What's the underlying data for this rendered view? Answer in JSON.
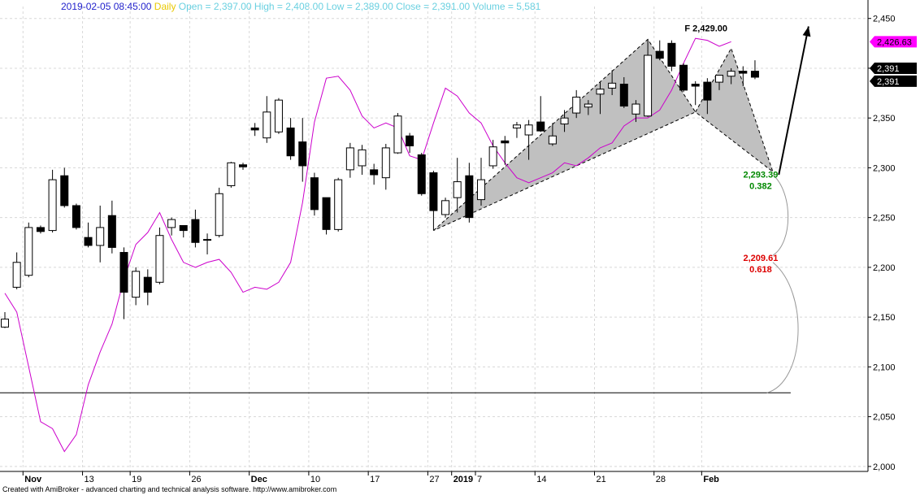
{
  "header": {
    "datetime": "2019-02-05 08:45:00",
    "period": "Daily",
    "open_label": "Open =",
    "open": "2,397.00",
    "high_label": "High =",
    "high": "2,408.00",
    "low_label": "Low =",
    "low": "2,389.00",
    "close_label": "Close =",
    "close": "2,391.00",
    "volume_label": "Volume =",
    "volume": "5,581"
  },
  "footer": "Created with AmiBroker - advanced charting and technical analysis software. http://www.amibroker.com",
  "colors": {
    "header_date": "#2222cc",
    "header_period": "#e8c800",
    "header_fields": "#6ad0e0",
    "overlay_line": "#cc00cc",
    "pattern_fill": "#c0c0c0",
    "fib_1": "#008800",
    "fib_2": "#dd0000",
    "grid": "#d8d8d8"
  },
  "chart_data": {
    "type": "candlestick",
    "ylim": [
      1995,
      2462
    ],
    "y_ticks": [
      "2,450",
      "2,400",
      "2,350",
      "2,300",
      "2,250",
      "2,200",
      "2,150",
      "2,100",
      "2,050",
      "2,000"
    ],
    "y_tick_values": [
      2450,
      2400,
      2350,
      2300,
      2250,
      2200,
      2150,
      2100,
      2050,
      2000
    ],
    "grid": true,
    "x_labels": [
      {
        "label": "Nov",
        "i": 2
      },
      {
        "label": "13",
        "i": 7
      },
      {
        "label": "19",
        "i": 11
      },
      {
        "label": "26",
        "i": 16
      },
      {
        "label": "Dec",
        "i": 21
      },
      {
        "label": "10",
        "i": 26
      },
      {
        "label": "17",
        "i": 31
      },
      {
        "label": "27",
        "i": 36
      },
      {
        "label": "2019",
        "i": 38
      },
      {
        "label": "7",
        "i": 40
      },
      {
        "label": "14",
        "i": 45
      },
      {
        "label": "21",
        "i": 50
      },
      {
        "label": "28",
        "i": 55
      },
      {
        "label": "Feb",
        "i": 59
      }
    ],
    "candles": [
      {
        "o": 2140,
        "h": 2155,
        "l": 2139,
        "c": 2148
      },
      {
        "o": 2180,
        "h": 2215,
        "l": 2178,
        "c": 2205
      },
      {
        "o": 2192,
        "h": 2245,
        "l": 2190,
        "c": 2240
      },
      {
        "o": 2240,
        "h": 2242,
        "l": 2234,
        "c": 2236
      },
      {
        "o": 2237,
        "h": 2298,
        "l": 2235,
        "c": 2288
      },
      {
        "o": 2292,
        "h": 2300,
        "l": 2260,
        "c": 2262
      },
      {
        "o": 2262,
        "h": 2264,
        "l": 2238,
        "c": 2240
      },
      {
        "o": 2230,
        "h": 2245,
        "l": 2220,
        "c": 2222
      },
      {
        "o": 2222,
        "h": 2262,
        "l": 2205,
        "c": 2240
      },
      {
        "o": 2252,
        "h": 2267,
        "l": 2214,
        "c": 2220
      },
      {
        "o": 2215,
        "h": 2220,
        "l": 2148,
        "c": 2175
      },
      {
        "o": 2170,
        "h": 2200,
        "l": 2162,
        "c": 2196
      },
      {
        "o": 2190,
        "h": 2198,
        "l": 2162,
        "c": 2175
      },
      {
        "o": 2185,
        "h": 2240,
        "l": 2183,
        "c": 2232
      },
      {
        "o": 2240,
        "h": 2250,
        "l": 2232,
        "c": 2248
      },
      {
        "o": 2242,
        "h": 2242,
        "l": 2230,
        "c": 2237
      },
      {
        "o": 2248,
        "h": 2258,
        "l": 2220,
        "c": 2225
      },
      {
        "o": 2228,
        "h": 2234,
        "l": 2213,
        "c": 2228
      },
      {
        "o": 2232,
        "h": 2280,
        "l": 2230,
        "c": 2274
      },
      {
        "o": 2282,
        "h": 2306,
        "l": 2280,
        "c": 2305
      },
      {
        "o": 2303,
        "h": 2305,
        "l": 2298,
        "c": 2301
      },
      {
        "o": 2340,
        "h": 2345,
        "l": 2332,
        "c": 2338
      },
      {
        "o": 2330,
        "h": 2372,
        "l": 2325,
        "c": 2356
      },
      {
        "o": 2336,
        "h": 2370,
        "l": 2334,
        "c": 2368
      },
      {
        "o": 2340,
        "h": 2350,
        "l": 2308,
        "c": 2312
      },
      {
        "o": 2326,
        "h": 2350,
        "l": 2286,
        "c": 2302
      },
      {
        "o": 2290,
        "h": 2295,
        "l": 2252,
        "c": 2258
      },
      {
        "o": 2270,
        "h": 2270,
        "l": 2233,
        "c": 2238
      },
      {
        "o": 2238,
        "h": 2290,
        "l": 2236,
        "c": 2288
      },
      {
        "o": 2298,
        "h": 2325,
        "l": 2290,
        "c": 2320
      },
      {
        "o": 2302,
        "h": 2323,
        "l": 2293,
        "c": 2318
      },
      {
        "o": 2298,
        "h": 2304,
        "l": 2283,
        "c": 2293
      },
      {
        "o": 2290,
        "h": 2324,
        "l": 2278,
        "c": 2320
      },
      {
        "o": 2315,
        "h": 2355,
        "l": 2314,
        "c": 2352
      },
      {
        "o": 2332,
        "h": 2335,
        "l": 2315,
        "c": 2322
      },
      {
        "o": 2313,
        "h": 2315,
        "l": 2272,
        "c": 2274
      },
      {
        "o": 2295,
        "h": 2297,
        "l": 2237,
        "c": 2257
      },
      {
        "o": 2253,
        "h": 2270,
        "l": 2250,
        "c": 2267
      },
      {
        "o": 2270,
        "h": 2310,
        "l": 2255,
        "c": 2286
      },
      {
        "o": 2292,
        "h": 2305,
        "l": 2245,
        "c": 2250
      },
      {
        "o": 2268,
        "h": 2310,
        "l": 2262,
        "c": 2288
      },
      {
        "o": 2302,
        "h": 2328,
        "l": 2299,
        "c": 2321
      },
      {
        "o": 2327,
        "h": 2332,
        "l": 2303,
        "c": 2325
      },
      {
        "o": 2340,
        "h": 2346,
        "l": 2330,
        "c": 2343
      },
      {
        "o": 2333,
        "h": 2348,
        "l": 2308,
        "c": 2343
      },
      {
        "o": 2346,
        "h": 2372,
        "l": 2336,
        "c": 2337
      },
      {
        "o": 2324,
        "h": 2345,
        "l": 2322,
        "c": 2332
      },
      {
        "o": 2344,
        "h": 2358,
        "l": 2336,
        "c": 2350
      },
      {
        "o": 2355,
        "h": 2378,
        "l": 2350,
        "c": 2371
      },
      {
        "o": 2361,
        "h": 2368,
        "l": 2353,
        "c": 2364
      },
      {
        "o": 2374,
        "h": 2386,
        "l": 2354,
        "c": 2379
      },
      {
        "o": 2380,
        "h": 2398,
        "l": 2373,
        "c": 2385
      },
      {
        "o": 2384,
        "h": 2391,
        "l": 2360,
        "c": 2362
      },
      {
        "o": 2354,
        "h": 2368,
        "l": 2346,
        "c": 2364
      },
      {
        "o": 2352,
        "h": 2429,
        "l": 2351,
        "c": 2413
      },
      {
        "o": 2417,
        "h": 2428,
        "l": 2408,
        "c": 2410
      },
      {
        "o": 2425,
        "h": 2428,
        "l": 2397,
        "c": 2402
      },
      {
        "o": 2403,
        "h": 2405,
        "l": 2376,
        "c": 2378
      },
      {
        "o": 2384,
        "h": 2387,
        "l": 2363,
        "c": 2382
      },
      {
        "o": 2386,
        "h": 2390,
        "l": 2354,
        "c": 2368
      },
      {
        "o": 2386,
        "h": 2393,
        "l": 2378,
        "c": 2393
      },
      {
        "o": 2392,
        "h": 2400,
        "l": 2384,
        "c": 2397
      },
      {
        "o": 2397,
        "h": 2402,
        "l": 2382,
        "c": 2395
      },
      {
        "o": 2397,
        "h": 2408,
        "l": 2389,
        "c": 2391
      }
    ],
    "overlay_series": [
      {
        "i": 0,
        "v": 2174
      },
      {
        "i": 1,
        "v": 2155
      },
      {
        "i": 2,
        "v": 2100
      },
      {
        "i": 3,
        "v": 2045
      },
      {
        "i": 4,
        "v": 2038
      },
      {
        "i": 5,
        "v": 2015
      },
      {
        "i": 6,
        "v": 2032
      },
      {
        "i": 7,
        "v": 2082
      },
      {
        "i": 8,
        "v": 2115
      },
      {
        "i": 9,
        "v": 2143
      },
      {
        "i": 10,
        "v": 2188
      },
      {
        "i": 11,
        "v": 2223
      },
      {
        "i": 12,
        "v": 2235
      },
      {
        "i": 13,
        "v": 2255
      },
      {
        "i": 14,
        "v": 2228
      },
      {
        "i": 15,
        "v": 2205
      },
      {
        "i": 16,
        "v": 2200
      },
      {
        "i": 17,
        "v": 2205
      },
      {
        "i": 18,
        "v": 2208
      },
      {
        "i": 19,
        "v": 2195
      },
      {
        "i": 20,
        "v": 2175
      },
      {
        "i": 21,
        "v": 2180
      },
      {
        "i": 22,
        "v": 2178
      },
      {
        "i": 23,
        "v": 2185
      },
      {
        "i": 24,
        "v": 2205
      },
      {
        "i": 25,
        "v": 2265
      },
      {
        "i": 26,
        "v": 2346
      },
      {
        "i": 27,
        "v": 2390
      },
      {
        "i": 28,
        "v": 2392
      },
      {
        "i": 29,
        "v": 2378
      },
      {
        "i": 30,
        "v": 2352
      },
      {
        "i": 31,
        "v": 2340
      },
      {
        "i": 32,
        "v": 2345
      },
      {
        "i": 33,
        "v": 2340
      },
      {
        "i": 34,
        "v": 2312
      },
      {
        "i": 35,
        "v": 2308
      },
      {
        "i": 36,
        "v": 2345
      },
      {
        "i": 37,
        "v": 2380
      },
      {
        "i": 38,
        "v": 2372
      },
      {
        "i": 39,
        "v": 2355
      },
      {
        "i": 40,
        "v": 2345
      },
      {
        "i": 41,
        "v": 2322
      },
      {
        "i": 42,
        "v": 2305
      },
      {
        "i": 43,
        "v": 2290
      },
      {
        "i": 44,
        "v": 2285
      },
      {
        "i": 45,
        "v": 2290
      },
      {
        "i": 46,
        "v": 2295
      },
      {
        "i": 47,
        "v": 2305
      },
      {
        "i": 48,
        "v": 2302
      },
      {
        "i": 49,
        "v": 2310
      },
      {
        "i": 50,
        "v": 2320
      },
      {
        "i": 51,
        "v": 2325
      },
      {
        "i": 52,
        "v": 2342
      },
      {
        "i": 53,
        "v": 2350
      },
      {
        "i": 54,
        "v": 2350
      },
      {
        "i": 55,
        "v": 2358
      },
      {
        "i": 56,
        "v": 2378
      },
      {
        "i": 57,
        "v": 2405
      },
      {
        "i": 58,
        "v": 2430
      },
      {
        "i": 59,
        "v": 2428
      },
      {
        "i": 60,
        "v": 2422
      },
      {
        "i": 61,
        "v": 2426.63
      }
    ],
    "pattern_shape": {
      "left_wing": [
        {
          "i": 36,
          "v": 2237
        },
        {
          "i": 54,
          "v": 2429
        },
        {
          "i": 58,
          "v": 2356
        }
      ],
      "right_wing": [
        {
          "i": 58,
          "v": 2356
        },
        {
          "i": 61,
          "v": 2420
        },
        {
          "i": 64.5,
          "v": 2296
        }
      ]
    },
    "projection_arrow": {
      "from": {
        "i": 65,
        "v": 2293
      },
      "to": {
        "i": 67.5,
        "v": 2442
      }
    },
    "support_line": {
      "v": 2074,
      "from_i": 0,
      "to_i": 66
    },
    "annotations": [
      {
        "name": "f-level",
        "text": "F  2,429.00",
        "i": 56,
        "v": 2429,
        "color": "#000000"
      },
      {
        "name": "fib-382-price",
        "text": "2,293.39",
        "i": 64.5,
        "v": 2293.39,
        "color": "#008800"
      },
      {
        "name": "fib-382-ratio",
        "text": "0.382",
        "i": 64.5,
        "v": 2293.39,
        "color": "#008800"
      },
      {
        "name": "fib-618-price",
        "text": "2,209.61",
        "i": 64.5,
        "v": 2209.61,
        "color": "#dd0000"
      },
      {
        "name": "fib-618-ratio",
        "text": "0.618",
        "i": 64.5,
        "v": 2209.61,
        "color": "#dd0000"
      }
    ],
    "price_labels": [
      {
        "text": "2,426.63",
        "v": 2426.63,
        "bg": "#ff00ff",
        "fg": "#000000"
      },
      {
        "text": "2,391",
        "v": 2400,
        "bg": "#000000",
        "fg": "#ffffff"
      },
      {
        "text": "2,391",
        "v": 2387,
        "bg": "#000000",
        "fg": "#ffffff"
      }
    ]
  }
}
